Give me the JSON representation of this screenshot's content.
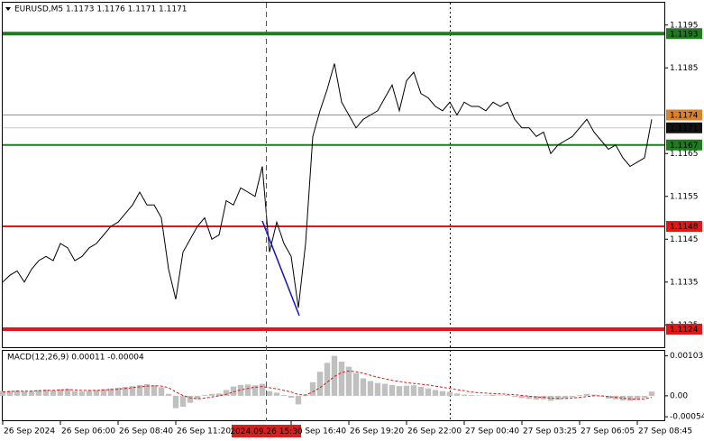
{
  "chart_data": [
    {
      "type": "line",
      "title": "EURUSD,M5  1.1173 1.1176 1.1171 1.1171",
      "crosshair_label": "2024.09.26 15:30",
      "color": "#000000",
      "ylim": [
        1.112,
        1.12
      ],
      "yticks": [
        1.1195,
        1.1185,
        1.1165,
        1.1155,
        1.1145,
        1.1135,
        1.1125
      ],
      "levels": [
        {
          "value": 1.1193,
          "color": "#1e7b1e",
          "width": 4
        },
        {
          "value": 1.1174,
          "color": "#d9822b",
          "width": 1
        },
        {
          "value": 1.1171,
          "color": "#c8c8c8",
          "width": 1
        },
        {
          "value": 1.1167,
          "color": "#1e7b1e",
          "width": 2
        },
        {
          "value": 1.1148,
          "color": "#e01818",
          "width": 2
        },
        {
          "value": 1.1124,
          "color": "#e01818",
          "width": 4
        }
      ],
      "categories": [
        "26 Sep 2024",
        null,
        null,
        null,
        null,
        null,
        null,
        null,
        "26 Sep 06:00",
        null,
        null,
        null,
        null,
        null,
        null,
        null,
        "26 Sep 08:40",
        null,
        null,
        null,
        null,
        null,
        null,
        null,
        "26 Sep 11:20",
        null,
        null,
        null,
        null,
        null,
        null,
        null,
        null,
        null,
        null,
        null,
        null,
        null,
        null,
        null,
        "26 Sep 16:40",
        null,
        null,
        null,
        null,
        null,
        null,
        null,
        "26 Sep 19:20",
        null,
        null,
        null,
        null,
        null,
        null,
        null,
        "26 Sep 22:00",
        null,
        null,
        null,
        null,
        null,
        null,
        null,
        "27 Sep 00:40",
        null,
        null,
        null,
        null,
        null,
        null,
        null,
        "27 Sep 03:25",
        null,
        null,
        null,
        null,
        null,
        null,
        null,
        "27 Sep 06:05",
        null,
        null,
        null,
        null,
        null,
        null,
        null,
        "27 Sep 08:45",
        null,
        null
      ],
      "values": [
        1.1135,
        1.11366,
        1.11376,
        1.1135,
        1.1138,
        1.114,
        1.1141,
        1.114,
        1.1144,
        1.1143,
        1.114,
        1.1141,
        1.1143,
        1.1144,
        1.1146,
        1.1148,
        1.1149,
        1.1151,
        1.1153,
        1.1156,
        1.1153,
        1.1153,
        1.115,
        1.1138,
        1.1131,
        1.1142,
        1.1145,
        1.1148,
        1.115,
        1.1145,
        1.1146,
        1.1154,
        1.1153,
        1.1157,
        1.1156,
        1.1155,
        1.1162,
        1.1142,
        1.1149,
        1.1144,
        1.1141,
        1.1129,
        1.1144,
        1.1169,
        1.1175,
        1.118,
        1.1186,
        1.1177,
        1.1174,
        1.1171,
        1.1173,
        1.1174,
        1.1175,
        1.1178,
        1.1181,
        1.1175,
        1.1182,
        1.1184,
        1.1179,
        1.1178,
        1.1176,
        1.1175,
        1.1177,
        1.1174,
        1.1177,
        1.1176,
        1.1176,
        1.1175,
        1.1177,
        1.1176,
        1.1177,
        1.1173,
        1.1171,
        1.1171,
        1.1169,
        1.117,
        1.1165,
        1.1167,
        1.1168,
        1.1169,
        1.1171,
        1.1173,
        1.117,
        1.1168,
        1.1166,
        1.1167,
        1.1164,
        1.1162,
        1.1163,
        1.1164,
        1.1173
      ]
    },
    {
      "type": "bar",
      "title": "MACD(12,26,9) 0.00011 -0.00004",
      "color": "#c0c0c0",
      "signal_color": "#e01818",
      "ylim": [
        -0.00063,
        0.00116
      ],
      "yticks": [
        0.00103,
        {
          "value": 0,
          "label": "0.00"
        },
        -0.00054
      ],
      "values": [
        0.00012,
        0.00013,
        0.00014,
        0.00012,
        0.00013,
        0.00015,
        0.00016,
        0.00014,
        0.00017,
        0.00018,
        0.00012,
        0.00011,
        0.00013,
        0.00015,
        0.00017,
        0.00019,
        0.00021,
        0.00023,
        0.00025,
        0.00028,
        0.0003,
        0.00027,
        0.00022,
        5e-05,
        -0.00032,
        -0.00028,
        -0.00018,
        -8e-05,
        2e-05,
        5e-05,
        6e-05,
        0.00015,
        0.00024,
        0.00028,
        0.00029,
        0.00027,
        0.00031,
        0.00012,
        8e-05,
        2e-05,
        -5e-05,
        -0.00022,
        3e-05,
        0.00035,
        0.00062,
        0.00085,
        0.00103,
        0.00088,
        0.00075,
        0.00058,
        0.00045,
        0.00038,
        0.00033,
        0.00031,
        0.00028,
        0.00025,
        0.00026,
        0.00027,
        0.00023,
        0.00019,
        0.00015,
        0.00012,
        0.0001,
        6e-05,
        3e-05,
        2e-05,
        1e-05,
        1e-05,
        2e-05,
        1e-05,
        2e-05,
        -3e-05,
        -6e-05,
        -8e-05,
        -0.0001,
        -9e-05,
        -0.00013,
        -0.0001,
        -7e-05,
        -4e-05,
        2e-05,
        5e-05,
        3e-05,
        -2e-05,
        -7e-05,
        -9e-05,
        -0.00012,
        -0.00013,
        -0.0001,
        -5e-05,
        0.00011
      ],
      "signal": [
        0.0001,
        0.00011,
        0.00012,
        0.00012,
        0.00012,
        0.00013,
        0.00014,
        0.00014,
        0.00015,
        0.00016,
        0.00015,
        0.00014,
        0.00014,
        0.00014,
        0.00015,
        0.00016,
        0.00017,
        0.00019,
        0.00021,
        0.00023,
        0.00025,
        0.00026,
        0.00025,
        0.00021,
        0.0001,
        1e-05,
        -5e-05,
        -8e-05,
        -6e-05,
        -3e-05,
        0,
        4e-05,
        0.0001,
        0.00015,
        0.00019,
        0.00022,
        0.00024,
        0.00021,
        0.00018,
        0.00014,
        0.0001,
        3e-05,
        2e-05,
        0.0001,
        0.00021,
        0.00035,
        0.0005,
        0.0006,
        0.00064,
        0.00062,
        0.00058,
        0.00053,
        0.00048,
        0.00044,
        0.0004,
        0.00037,
        0.00034,
        0.00032,
        0.0003,
        0.00028,
        0.00025,
        0.00022,
        0.00019,
        0.00016,
        0.00013,
        0.0001,
        8e-05,
        7e-05,
        6e-05,
        5e-05,
        4e-05,
        3e-05,
        1e-05,
        -1e-05,
        -3e-05,
        -4e-05,
        -6e-05,
        -7e-05,
        -7e-05,
        -6e-05,
        -4e-05,
        -2e-05,
        0,
        0,
        -2e-05,
        -4e-05,
        -6e-05,
        -8e-05,
        -9e-05,
        -8e-05,
        -4e-05
      ]
    }
  ]
}
